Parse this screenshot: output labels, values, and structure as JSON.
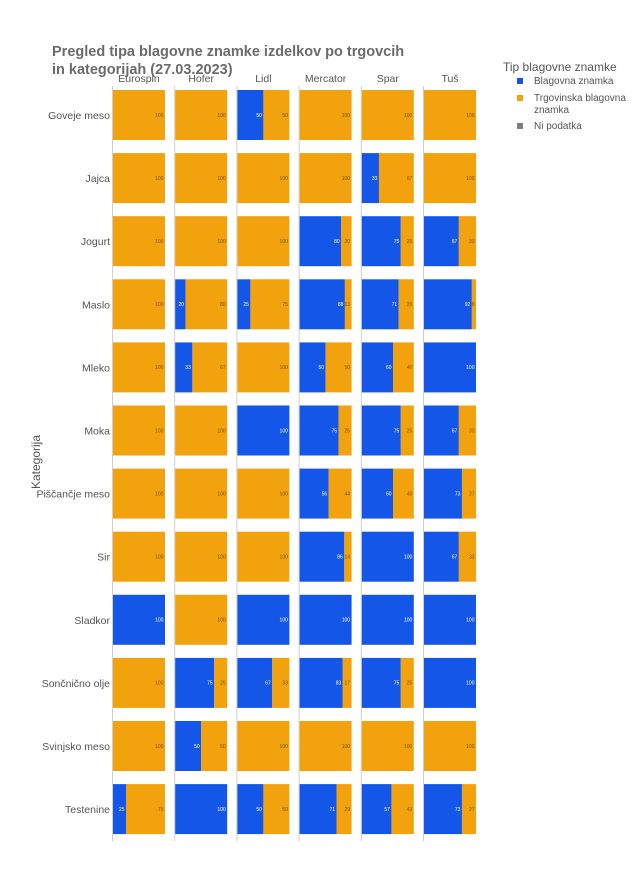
{
  "chart_data": {
    "type": "bar",
    "title_lines": [
      "Pregled tipa blagovne znamke izdelkov po trgovcih",
      "in kategorijah (27.03.2023)"
    ],
    "ylabel": "Kategorija",
    "columns": [
      "Eurospin",
      "Hofer",
      "Lidl",
      "Mercator",
      "Spar",
      "Tuš"
    ],
    "categories": [
      "Goveje meso",
      "Jajca",
      "Jogurt",
      "Maslo",
      "Mleko",
      "Moka",
      "Piščančje meso",
      "Sir",
      "Sladkor",
      "Sončnično olje",
      "Svinjsko meso",
      "Testenine"
    ],
    "legend": {
      "title": "Tip blagovne znamke",
      "placement": "top-right",
      "items": [
        {
          "label": "Blagovna znamka",
          "color": "#1457e8"
        },
        {
          "label": "Trgovinska blagovna znamka",
          "color": "#f2a20c"
        },
        {
          "label": "Ni podatka",
          "color": "#7f7f7f"
        }
      ]
    },
    "series": [
      {
        "name": "Blagovna znamka",
        "values": [
          [
            0,
            0,
            50,
            0,
            0,
            0
          ],
          [
            0,
            0,
            0,
            0,
            33,
            0
          ],
          [
            0,
            0,
            0,
            80,
            75,
            67
          ],
          [
            0,
            20,
            25,
            88,
            71,
            92
          ],
          [
            0,
            33,
            0,
            50,
            60,
            100
          ],
          [
            0,
            0,
            100,
            75,
            75,
            67
          ],
          [
            0,
            0,
            0,
            56,
            60,
            73
          ],
          [
            0,
            0,
            0,
            86,
            100,
            67
          ],
          [
            100,
            0,
            100,
            100,
            100,
            100
          ],
          [
            0,
            75,
            67,
            83,
            75,
            100
          ],
          [
            0,
            50,
            0,
            0,
            0,
            0
          ],
          [
            25,
            100,
            50,
            71,
            57,
            73
          ]
        ]
      },
      {
        "name": "Trgovinska blagovna znamka",
        "values": [
          [
            100,
            100,
            50,
            100,
            100,
            100
          ],
          [
            100,
            100,
            100,
            100,
            67,
            100
          ],
          [
            100,
            100,
            100,
            20,
            25,
            33
          ],
          [
            100,
            80,
            75,
            13,
            29,
            8
          ],
          [
            100,
            67,
            100,
            50,
            40,
            0
          ],
          [
            100,
            100,
            0,
            25,
            25,
            33
          ],
          [
            100,
            100,
            100,
            44,
            40,
            27
          ],
          [
            100,
            100,
            100,
            14,
            0,
            33
          ],
          [
            0,
            100,
            0,
            0,
            0,
            0
          ],
          [
            100,
            25,
            33,
            17,
            25,
            0
          ],
          [
            100,
            50,
            100,
            100,
            100,
            100
          ],
          [
            75,
            0,
            50,
            29,
            43,
            27
          ]
        ]
      }
    ]
  }
}
